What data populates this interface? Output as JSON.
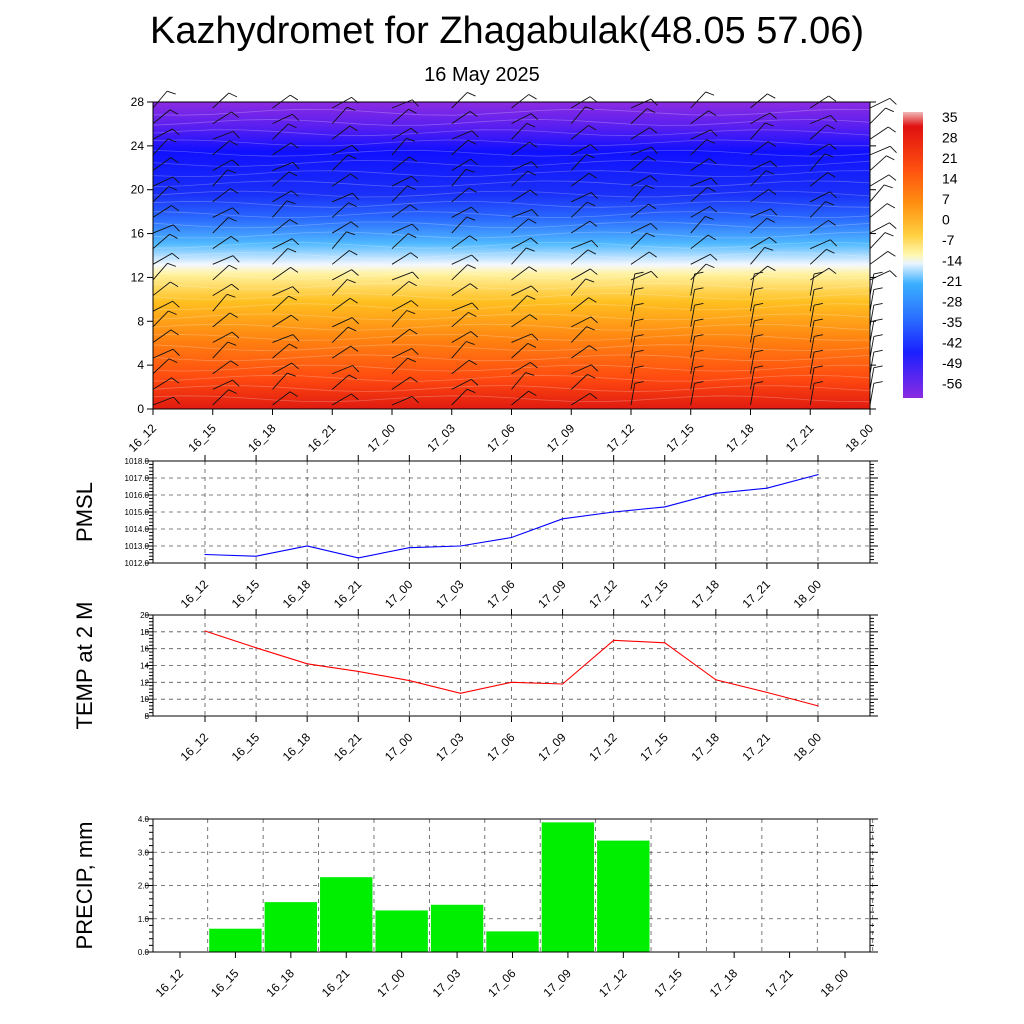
{
  "title": "Kazhydromet for Zhagabulak(48.05 57.06)",
  "subtitle": "16 May 2025",
  "time_labels": [
    "16_12",
    "16_15",
    "16_18",
    "16_21",
    "17_00",
    "17_03",
    "17_06",
    "17_09",
    "17_12",
    "17_15",
    "17_18",
    "17_21",
    "18_00"
  ],
  "chart_data": [
    {
      "type": "heatmap",
      "yticks": [
        "0",
        "4",
        "8",
        "12",
        "16",
        "20",
        "24",
        "28"
      ],
      "ylim": [
        0,
        28
      ],
      "x": [
        "16_12",
        "16_15",
        "16_18",
        "16_21",
        "17_00",
        "17_03",
        "17_06",
        "17_09",
        "17_12",
        "17_15",
        "17_18",
        "17_21",
        "18_00"
      ],
      "colorbar_labels": [
        "35",
        "28",
        "21",
        "14",
        "7",
        "0",
        "-7",
        "-14",
        "-21",
        "-28",
        "-35",
        "-42",
        "-49",
        "-56"
      ],
      "colorbar_range": [
        -60,
        38
      ],
      "colors": [
        "#8a2be2",
        "#2020ff",
        "#1a3fff",
        "#37a8ff",
        "#e8f4ff",
        "#fff07a",
        "#ffb000",
        "#ff7010",
        "#ff3a10",
        "#e01010"
      ]
    },
    {
      "type": "line",
      "ylabel": "PMSL",
      "x": [
        "16_12",
        "16_15",
        "16_18",
        "16_21",
        "17_00",
        "17_03",
        "17_06",
        "17_09",
        "17_12",
        "17_15",
        "17_18",
        "17_21",
        "18_00"
      ],
      "values": [
        1012.5,
        1012.4,
        1013.0,
        1012.3,
        1012.9,
        1013.0,
        1013.5,
        1014.6,
        1015.0,
        1015.3,
        1016.1,
        1016.4,
        1017.2
      ],
      "yticks": [
        "1012.0",
        "1013.0",
        "1014.0",
        "1015.0",
        "1016.0",
        "1017.0",
        "1018.0"
      ],
      "ylim": [
        1012,
        1018
      ],
      "color": "#0000ff",
      "grid": true
    },
    {
      "type": "line",
      "ylabel": "TEMP at 2 M",
      "x": [
        "16_12",
        "16_15",
        "16_18",
        "16_21",
        "17_00",
        "17_03",
        "17_06",
        "17_09",
        "17_12",
        "17_15",
        "17_18",
        "17_21",
        "18_00"
      ],
      "values": [
        18.1,
        16.1,
        14.2,
        13.3,
        12.2,
        10.7,
        12.0,
        11.8,
        17.0,
        16.7,
        12.3,
        10.8,
        9.2
      ],
      "yticks": [
        "8",
        "10",
        "12",
        "14",
        "16",
        "18",
        "20"
      ],
      "ylim": [
        8,
        20
      ],
      "color": "#ff0000",
      "grid": true
    },
    {
      "type": "bar",
      "ylabel": "PRECIP, mm",
      "categories": [
        "16_12",
        "16_15",
        "16_18",
        "16_21",
        "17_00",
        "17_03",
        "17_06",
        "17_09",
        "17_12",
        "17_15",
        "17_18",
        "17_21",
        "18_00"
      ],
      "values": [
        0,
        0.7,
        1.5,
        2.25,
        1.25,
        1.42,
        0.62,
        3.9,
        3.35,
        0,
        0,
        0,
        0
      ],
      "yticks": [
        "0.0",
        "1.0",
        "2.0",
        "3.0",
        "4.0"
      ],
      "ylim": [
        0,
        4
      ],
      "color": "#00ee00",
      "grid": true
    }
  ]
}
